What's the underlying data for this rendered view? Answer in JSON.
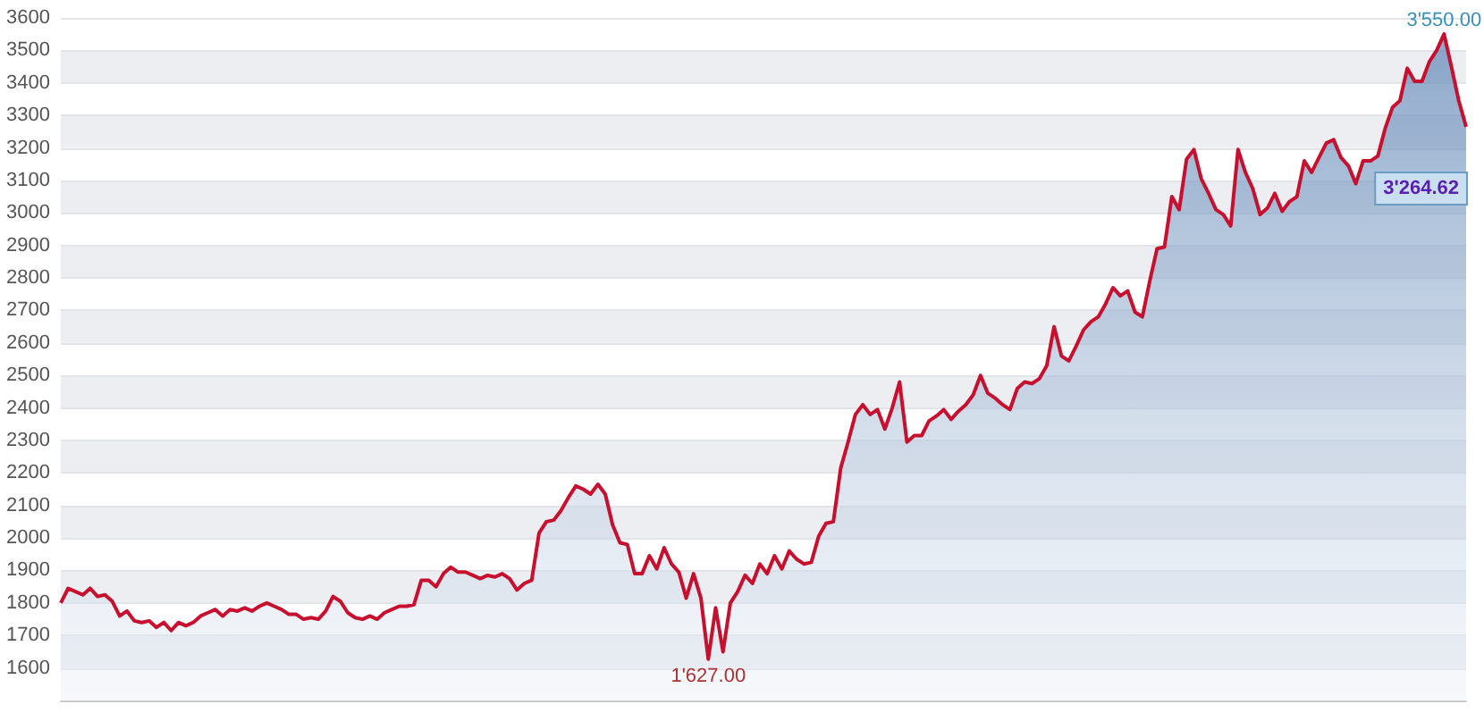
{
  "chart_data": {
    "type": "area",
    "color": "#c8102e",
    "grid": true,
    "ylim": [
      1500,
      3600
    ],
    "yticks": [
      1600,
      1700,
      1800,
      1900,
      2000,
      2100,
      2200,
      2300,
      2400,
      2500,
      2600,
      2700,
      2800,
      2900,
      3000,
      3100,
      3200,
      3300,
      3400,
      3500,
      3600
    ],
    "categories": [
      null,
      null,
      null,
      null,
      null,
      null,
      null,
      null,
      null,
      null,
      null,
      null,
      null,
      null,
      null,
      null,
      null,
      null,
      null,
      null,
      null,
      null,
      null,
      null,
      null,
      null,
      null,
      null,
      null,
      null,
      null,
      null,
      null,
      null,
      null,
      null,
      null,
      null,
      null,
      null,
      null,
      null,
      null,
      null,
      null,
      null,
      null,
      null,
      null,
      null,
      null,
      null,
      null,
      null,
      null,
      null,
      null,
      null,
      null,
      null,
      null,
      null,
      null,
      null,
      null,
      null,
      null,
      null,
      null,
      null,
      null,
      null,
      null,
      null,
      null,
      null,
      null,
      null,
      null,
      null,
      null,
      null,
      null,
      null,
      null,
      null,
      null,
      null,
      null,
      null,
      null,
      null,
      null,
      null,
      null,
      null,
      null,
      null,
      null,
      null,
      null,
      null,
      null,
      null,
      null,
      null,
      null,
      null,
      null,
      null,
      null,
      null,
      null,
      null,
      null,
      null,
      null,
      null,
      null,
      null,
      null,
      null,
      null,
      null,
      null,
      null,
      null,
      null,
      null,
      null,
      null,
      null,
      null,
      null,
      null,
      null,
      null,
      null,
      null,
      null,
      null,
      null,
      null,
      null,
      null,
      null,
      null,
      null,
      null,
      null,
      null,
      null,
      null,
      null,
      null,
      null,
      null,
      null,
      null,
      null,
      null,
      null,
      null,
      null,
      null,
      null,
      null,
      null,
      null,
      null,
      null,
      null,
      null,
      null,
      null,
      null,
      null,
      null,
      null,
      null,
      null,
      null,
      null,
      null,
      null,
      null,
      null,
      null,
      null,
      null,
      null,
      null
    ],
    "values": [
      1800,
      1845,
      1835,
      1825,
      1845,
      1820,
      1825,
      1805,
      1760,
      1775,
      1745,
      1740,
      1745,
      1725,
      1740,
      1715,
      1740,
      1730,
      1740,
      1760,
      1770,
      1780,
      1760,
      1780,
      1775,
      1785,
      1775,
      1790,
      1800,
      1790,
      1780,
      1765,
      1765,
      1750,
      1755,
      1750,
      1775,
      1820,
      1805,
      1770,
      1755,
      1750,
      1760,
      1750,
      1770,
      1780,
      1790,
      1790,
      1795,
      1870,
      1870,
      1850,
      1890,
      1910,
      1895,
      1895,
      1885,
      1875,
      1885,
      1880,
      1890,
      1875,
      1840,
      1860,
      1870,
      2015,
      2050,
      2055,
      2085,
      2125,
      2160,
      2150,
      2135,
      2165,
      2135,
      2040,
      1985,
      1980,
      1890,
      1890,
      1945,
      1905,
      1970,
      1920,
      1895,
      1815,
      1890,
      1815,
      1627,
      1785,
      1650,
      1800,
      1835,
      1885,
      1860,
      1920,
      1890,
      1945,
      1905,
      1960,
      1935,
      1920,
      1925,
      2005,
      2045,
      2050,
      2215,
      2295,
      2380,
      2410,
      2380,
      2395,
      2335,
      2400,
      2480,
      2295,
      2315,
      2315,
      2360,
      2375,
      2395,
      2365,
      2390,
      2410,
      2440,
      2500,
      2445,
      2430,
      2410,
      2395,
      2460,
      2480,
      2475,
      2490,
      2530,
      2650,
      2560,
      2545,
      2590,
      2640,
      2665,
      2680,
      2720,
      2770,
      2745,
      2760,
      2695,
      2680,
      2790,
      2890,
      2895,
      3050,
      3010,
      3165,
      3195,
      3105,
      3060,
      3010,
      2995,
      2960,
      3195,
      3125,
      3075,
      2995,
      3015,
      3060,
      3005,
      3035,
      3050,
      3160,
      3125,
      3170,
      3215,
      3225,
      3170,
      3145,
      3090,
      3160,
      3160,
      3175,
      3260,
      3325,
      3345,
      3445,
      3405,
      3405,
      3465,
      3500,
      3550,
      3450,
      3345,
      3265
    ],
    "annotations": [
      {
        "text": "3'550.00",
        "y": 3550
      },
      {
        "text": "1'627.00",
        "y": 1627
      },
      "3'264.62"
    ]
  }
}
